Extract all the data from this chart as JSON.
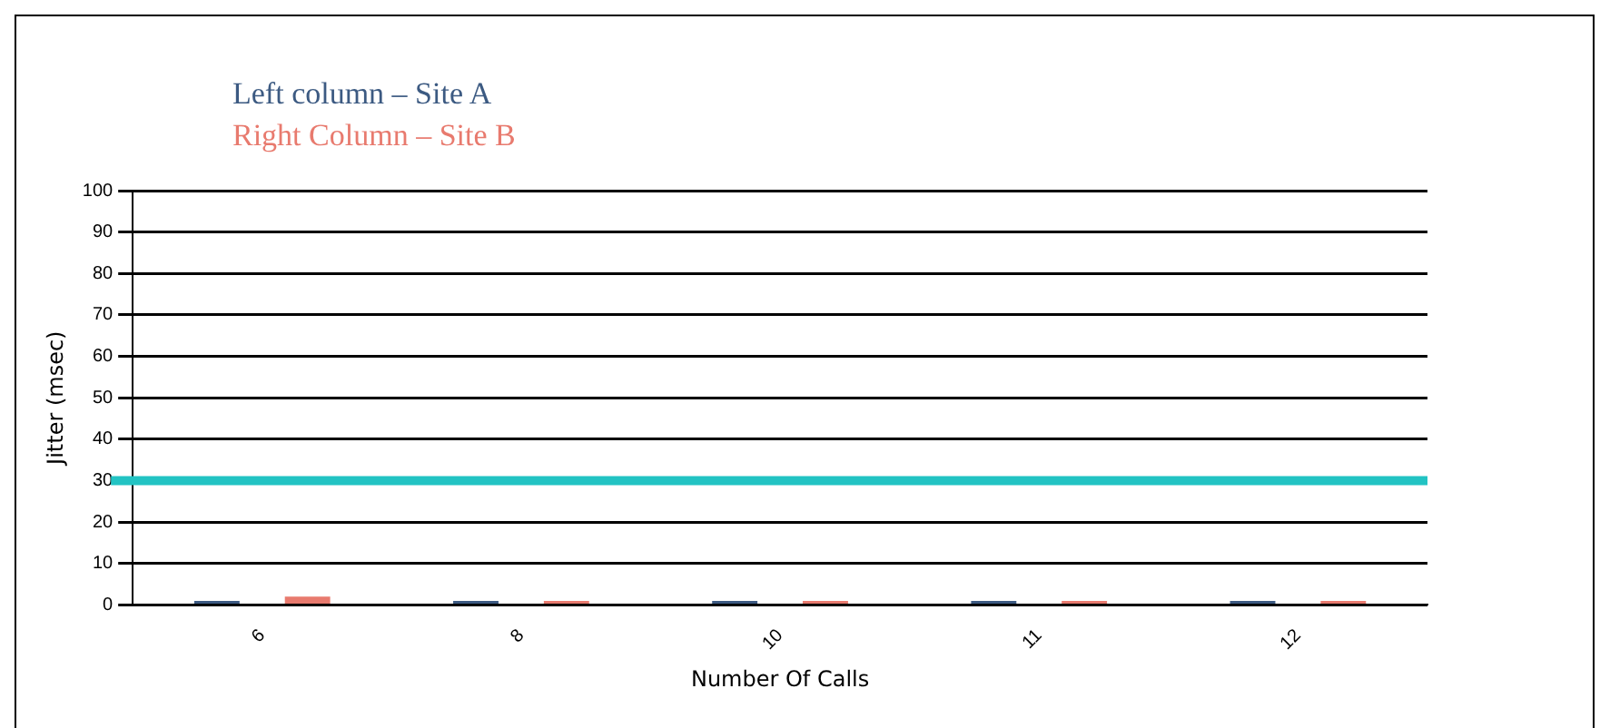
{
  "chart_data": {
    "type": "bar",
    "xlabel": "Number Of Calls",
    "ylabel": "Jitter (msec)",
    "categories": [
      "6",
      "8",
      "10",
      "11",
      "12"
    ],
    "series": [
      {
        "name": "Left column – Site A",
        "color": "#3c5a82",
        "values": [
          1,
          1,
          1,
          1,
          1
        ]
      },
      {
        "name": "Right Column – Site B",
        "color": "#e87a6e",
        "values": [
          2,
          1,
          1,
          1,
          1
        ]
      }
    ],
    "ylim": [
      0,
      100
    ],
    "yticks": [
      0,
      10,
      20,
      30,
      40,
      50,
      60,
      70,
      80,
      90,
      100
    ],
    "grid": "y",
    "legend": "top left",
    "ref_lines": [
      {
        "axis": "y",
        "value": 30,
        "color": "#22c3c3"
      }
    ]
  }
}
